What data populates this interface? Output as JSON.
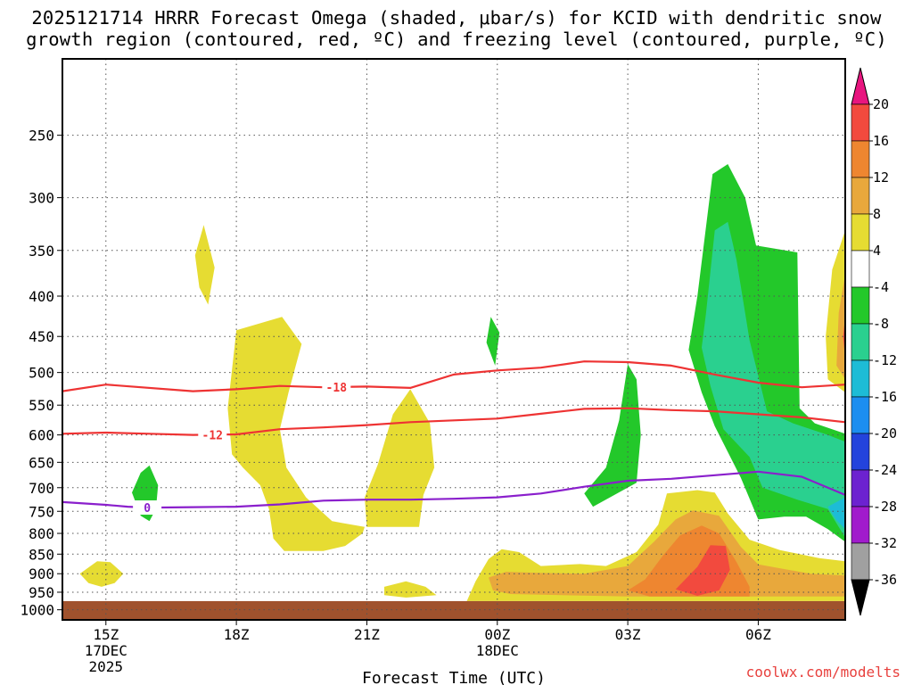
{
  "title": {
    "line1": "2025121714 HRRR Forecast Omega (shaded, μbar/s) for KCID with dendritic snow",
    "line2": "growth region (contoured, red, ºC) and freezing level (contoured, purple, ºC)"
  },
  "credit": {
    "text": "coolwx.com/modelts",
    "color": "#e8413e"
  },
  "chart_data": {
    "type": "time-height contour",
    "title": "2025121714 HRRR Forecast Omega (shaded, μbar/s) for KCID with dendritic snow growth region (contoured, red, ºC) and freezing level (contoured, purple, ºC)",
    "xlabel": "Forecast Time (UTC)",
    "ylabel": "",
    "x_ticks": [
      {
        "hours": 1,
        "label": "15Z",
        "sub": [
          "17DEC",
          "2025"
        ]
      },
      {
        "hours": 4,
        "label": "18Z",
        "sub": []
      },
      {
        "hours": 7,
        "label": "21Z",
        "sub": []
      },
      {
        "hours": 10,
        "label": "00Z",
        "sub": [
          "18DEC"
        ]
      },
      {
        "hours": 13,
        "label": "03Z",
        "sub": []
      },
      {
        "hours": 16,
        "label": "06Z",
        "sub": []
      }
    ],
    "xlim_hours_from_14z": [
      0,
      18
    ],
    "y_ticks": [
      250,
      300,
      350,
      400,
      450,
      500,
      550,
      600,
      650,
      700,
      750,
      800,
      850,
      900,
      950,
      1000
    ],
    "ylim_hPa": [
      200,
      1030
    ],
    "y_scale": "log",
    "grid": true,
    "surface_pressure_hPa": 975,
    "contours": [
      {
        "name": "-18",
        "color": "#ee3333",
        "label": "-18",
        "points": [
          [
            0,
            528
          ],
          [
            1,
            518
          ],
          [
            3,
            528
          ],
          [
            4,
            525
          ],
          [
            5,
            520
          ],
          [
            6,
            522
          ],
          [
            7,
            521
          ],
          [
            8,
            523
          ],
          [
            9,
            503
          ],
          [
            10,
            497
          ],
          [
            11,
            493
          ],
          [
            12,
            484
          ],
          [
            13,
            485
          ],
          [
            14,
            490
          ],
          [
            15,
            503
          ],
          [
            16,
            515
          ],
          [
            17,
            522
          ],
          [
            18,
            518
          ]
        ]
      },
      {
        "name": "-12",
        "color": "#ee3333",
        "label": "-12",
        "points": [
          [
            0,
            598
          ],
          [
            1,
            596
          ],
          [
            2,
            598
          ],
          [
            3,
            600
          ],
          [
            4,
            599
          ],
          [
            5,
            590
          ],
          [
            6,
            587
          ],
          [
            7,
            583
          ],
          [
            8,
            578
          ],
          [
            9,
            575
          ],
          [
            10,
            572
          ],
          [
            11,
            564
          ],
          [
            12,
            556
          ],
          [
            13,
            555
          ],
          [
            14,
            558
          ],
          [
            15,
            560
          ],
          [
            16,
            565
          ],
          [
            17,
            570
          ],
          [
            18,
            578
          ]
        ]
      },
      {
        "name": "0",
        "color": "#8a1fcc",
        "label": "0",
        "points": [
          [
            0,
            730
          ],
          [
            1,
            736
          ],
          [
            1.5,
            740
          ],
          [
            2,
            742
          ],
          [
            3,
            741
          ],
          [
            4,
            740
          ],
          [
            5,
            735
          ],
          [
            6,
            727
          ],
          [
            7,
            725
          ],
          [
            8,
            725
          ],
          [
            9,
            723
          ],
          [
            10,
            720
          ],
          [
            11,
            712
          ],
          [
            12,
            698
          ],
          [
            13,
            686
          ],
          [
            14,
            682
          ],
          [
            15,
            675
          ],
          [
            16,
            668
          ],
          [
            17,
            678
          ],
          [
            18,
            715
          ]
        ]
      }
    ],
    "shaded_regions": [
      {
        "level": "4 to 8",
        "color": "#e6dc32",
        "points": [
          [
            0.4,
            900
          ],
          [
            0.8,
            868
          ],
          [
            1.1,
            870
          ],
          [
            1.4,
            900
          ],
          [
            1.2,
            925
          ],
          [
            0.9,
            935
          ],
          [
            0.6,
            925
          ]
        ]
      },
      {
        "level": "4 to 8",
        "color": "#e6dc32",
        "points": [
          [
            3.25,
            325
          ],
          [
            3.5,
            368
          ],
          [
            3.35,
            410
          ],
          [
            3.15,
            390
          ],
          [
            3.05,
            355
          ]
        ]
      },
      {
        "level": "4 to 8",
        "color": "#e6dc32",
        "points": [
          [
            4.0,
            442
          ],
          [
            5.05,
            425
          ],
          [
            5.5,
            460
          ],
          [
            5.2,
            530
          ],
          [
            5.0,
            590
          ],
          [
            5.15,
            660
          ],
          [
            5.6,
            720
          ],
          [
            6.2,
            772
          ],
          [
            6.95,
            785
          ],
          [
            6.9,
            800
          ],
          [
            6.5,
            830
          ],
          [
            6.0,
            842
          ],
          [
            5.1,
            842
          ],
          [
            4.85,
            812
          ],
          [
            4.75,
            745
          ],
          [
            4.55,
            695
          ],
          [
            4.15,
            660
          ],
          [
            3.9,
            635
          ],
          [
            3.8,
            555
          ]
        ]
      },
      {
        "level": "4 to 8",
        "color": "#e6dc32",
        "points": [
          [
            8.0,
            525
          ],
          [
            8.45,
            580
          ],
          [
            8.55,
            660
          ],
          [
            8.3,
            715
          ],
          [
            8.2,
            785
          ],
          [
            7.0,
            785
          ],
          [
            6.95,
            720
          ],
          [
            7.25,
            655
          ],
          [
            7.6,
            565
          ]
        ]
      },
      {
        "level": "4 to 8",
        "color": "#e6dc32",
        "points": [
          [
            7.4,
            935
          ],
          [
            7.9,
            920
          ],
          [
            8.35,
            935
          ],
          [
            8.6,
            958
          ],
          [
            7.9,
            965
          ],
          [
            7.4,
            958
          ]
        ]
      },
      {
        "level": "4 to 8",
        "color": "#e6dc32",
        "points": [
          [
            9.3,
            975
          ],
          [
            9.5,
            920
          ],
          [
            9.8,
            862
          ],
          [
            10.1,
            838
          ],
          [
            10.5,
            845
          ],
          [
            11.0,
            880
          ],
          [
            11.9,
            875
          ],
          [
            12.5,
            880
          ],
          [
            13.2,
            845
          ],
          [
            13.7,
            780
          ],
          [
            13.9,
            712
          ],
          [
            14.6,
            705
          ],
          [
            15.0,
            710
          ],
          [
            15.3,
            755
          ],
          [
            15.8,
            815
          ],
          [
            16.5,
            840
          ],
          [
            17.4,
            860
          ],
          [
            18.0,
            868
          ],
          [
            18.0,
            975
          ]
        ]
      },
      {
        "level": "8 to 12",
        "color": "#e8a83c",
        "points": [
          [
            9.8,
            910
          ],
          [
            10.2,
            895
          ],
          [
            11.0,
            898
          ],
          [
            12.0,
            900
          ],
          [
            13.0,
            880
          ],
          [
            13.6,
            820
          ],
          [
            14.1,
            768
          ],
          [
            14.5,
            748
          ],
          [
            15.1,
            760
          ],
          [
            15.6,
            832
          ],
          [
            16.0,
            876
          ],
          [
            17.2,
            900
          ],
          [
            18.0,
            905
          ],
          [
            18.0,
            962
          ],
          [
            13.0,
            962
          ],
          [
            10.3,
            955
          ],
          [
            9.9,
            945
          ]
        ]
      },
      {
        "level": "12 to 16",
        "color": "#ee8630",
        "points": [
          [
            13.0,
            945
          ],
          [
            13.4,
            915
          ],
          [
            13.8,
            855
          ],
          [
            14.2,
            805
          ],
          [
            14.7,
            782
          ],
          [
            15.1,
            800
          ],
          [
            15.5,
            870
          ],
          [
            15.8,
            935
          ],
          [
            15.8,
            962
          ],
          [
            13.5,
            962
          ]
        ]
      },
      {
        "level": "16 to 20",
        "color": "#f24a3e",
        "points": [
          [
            14.1,
            942
          ],
          [
            14.6,
            882
          ],
          [
            14.9,
            828
          ],
          [
            15.25,
            830
          ],
          [
            15.35,
            890
          ],
          [
            15.1,
            945
          ],
          [
            14.6,
            960
          ]
        ]
      },
      {
        "level": "-8 to -4",
        "color": "#23c82a",
        "points": [
          [
            1.8,
            760
          ],
          [
            1.6,
            710
          ],
          [
            1.8,
            670
          ],
          [
            2.0,
            656
          ],
          [
            2.2,
            695
          ],
          [
            2.15,
            745
          ],
          [
            2.0,
            772
          ]
        ]
      },
      {
        "level": "-8 to -4",
        "color": "#23c82a",
        "points": [
          [
            9.85,
            425
          ],
          [
            10.05,
            445
          ],
          [
            9.95,
            490
          ],
          [
            9.75,
            458
          ]
        ]
      },
      {
        "level": "-8 to -4",
        "color": "#23c82a",
        "points": [
          [
            12.0,
            712
          ],
          [
            12.5,
            660
          ],
          [
            12.8,
            575
          ],
          [
            13.0,
            488
          ],
          [
            13.2,
            510
          ],
          [
            13.3,
            600
          ],
          [
            13.2,
            690
          ],
          [
            12.2,
            740
          ]
        ]
      },
      {
        "level": "-8 to -4",
        "color": "#23c82a",
        "points": [
          [
            14.6,
            400
          ],
          [
            14.95,
            280
          ],
          [
            15.3,
            272
          ],
          [
            15.7,
            300
          ],
          [
            15.95,
            345
          ],
          [
            16.9,
            352
          ],
          [
            16.95,
            555
          ],
          [
            17.3,
            580
          ],
          [
            18.0,
            598
          ],
          [
            18.0,
            820
          ],
          [
            17.6,
            790
          ],
          [
            17.1,
            762
          ],
          [
            16.6,
            762
          ],
          [
            16.0,
            768
          ],
          [
            15.6,
            680
          ],
          [
            15.0,
            585
          ],
          [
            14.7,
            530
          ],
          [
            14.4,
            468
          ]
        ]
      },
      {
        "level": "-12 to -8",
        "color": "#2ad08f",
        "points": [
          [
            14.8,
            420
          ],
          [
            15.0,
            330
          ],
          [
            15.3,
            322
          ],
          [
            15.5,
            360
          ],
          [
            15.8,
            455
          ],
          [
            16.2,
            560
          ],
          [
            16.8,
            580
          ],
          [
            17.6,
            600
          ],
          [
            18.0,
            612
          ],
          [
            18.0,
            810
          ],
          [
            17.6,
            745
          ],
          [
            16.9,
            725
          ],
          [
            16.1,
            700
          ],
          [
            15.8,
            640
          ],
          [
            15.2,
            590
          ],
          [
            14.9,
            520
          ],
          [
            14.7,
            465
          ]
        ]
      },
      {
        "level": "-16 to -12",
        "color": "#1dbcd6",
        "points": [
          [
            17.6,
            740
          ],
          [
            18.0,
            720
          ],
          [
            18.0,
            790
          ],
          [
            17.8,
            770
          ]
        ]
      },
      {
        "level": "4 to 8",
        "color": "#e6dc32",
        "points": [
          [
            18.0,
            330
          ],
          [
            17.7,
            370
          ],
          [
            17.55,
            450
          ],
          [
            17.6,
            510
          ],
          [
            18.0,
            530
          ]
        ]
      },
      {
        "level": "8 to 12",
        "color": "#e8a83c",
        "points": [
          [
            18.0,
            375
          ],
          [
            17.85,
            420
          ],
          [
            17.8,
            490
          ],
          [
            18.0,
            510
          ]
        ]
      },
      {
        "level": "16 to 20",
        "color": "#f24a3e",
        "points": [
          [
            18.0,
            425
          ],
          [
            17.95,
            450
          ],
          [
            18.0,
            480
          ]
        ]
      }
    ],
    "colorbar": {
      "levels": [
        "20",
        "16",
        "12",
        "8",
        "4",
        "-4",
        "-8",
        "-12",
        "-16",
        "-20",
        "-24",
        "-28",
        "-32",
        "-36"
      ],
      "colors": [
        "#e8157f",
        "#f24a3e",
        "#ee8630",
        "#e8a83c",
        "#e6dc32",
        "#ffffff",
        "#23c82a",
        "#2ad08f",
        "#1dbcd6",
        "#1c8ef0",
        "#2343dc",
        "#6c22d0",
        "#a11bcc",
        "#a0a0a0",
        "#000000"
      ]
    },
    "surface_color": "#a0522d"
  }
}
